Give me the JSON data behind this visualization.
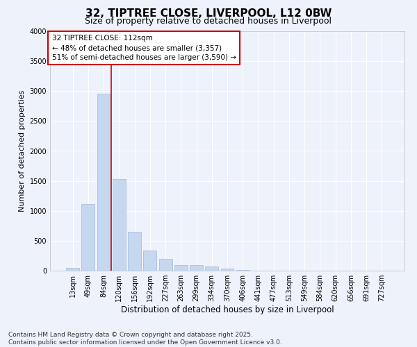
{
  "title": "32, TIPTREE CLOSE, LIVERPOOL, L12 0BW",
  "subtitle": "Size of property relative to detached houses in Liverpool",
  "xlabel": "Distribution of detached houses by size in Liverpool",
  "ylabel": "Number of detached properties",
  "categories": [
    "13sqm",
    "49sqm",
    "84sqm",
    "120sqm",
    "156sqm",
    "192sqm",
    "227sqm",
    "263sqm",
    "299sqm",
    "334sqm",
    "370sqm",
    "406sqm",
    "441sqm",
    "477sqm",
    "513sqm",
    "549sqm",
    "584sqm",
    "620sqm",
    "656sqm",
    "691sqm",
    "727sqm"
  ],
  "values": [
    50,
    1110,
    2960,
    1530,
    650,
    340,
    200,
    95,
    90,
    65,
    40,
    10,
    5,
    0,
    0,
    0,
    0,
    0,
    0,
    0,
    0
  ],
  "bar_color": "#c5d8f0",
  "bar_edge_color": "#a0b8d8",
  "vline_x_index": 3,
  "vline_color": "#cc0000",
  "ylim": [
    0,
    4000
  ],
  "yticks": [
    0,
    500,
    1000,
    1500,
    2000,
    2500,
    3000,
    3500,
    4000
  ],
  "annotation_title": "32 TIPTREE CLOSE: 112sqm",
  "annotation_line1": "← 48% of detached houses are smaller (3,357)",
  "annotation_line2": "51% of semi-detached houses are larger (3,590) →",
  "annotation_box_color": "#ffffff",
  "annotation_box_edge": "#cc0000",
  "footnote1": "Contains HM Land Registry data © Crown copyright and database right 2025.",
  "footnote2": "Contains public sector information licensed under the Open Government Licence v3.0.",
  "background_color": "#eef2fb",
  "grid_color": "#ffffff",
  "title_fontsize": 11,
  "subtitle_fontsize": 9,
  "xlabel_fontsize": 8.5,
  "ylabel_fontsize": 8,
  "tick_fontsize": 7,
  "footnote_fontsize": 6.5,
  "annotation_fontsize": 7.5
}
